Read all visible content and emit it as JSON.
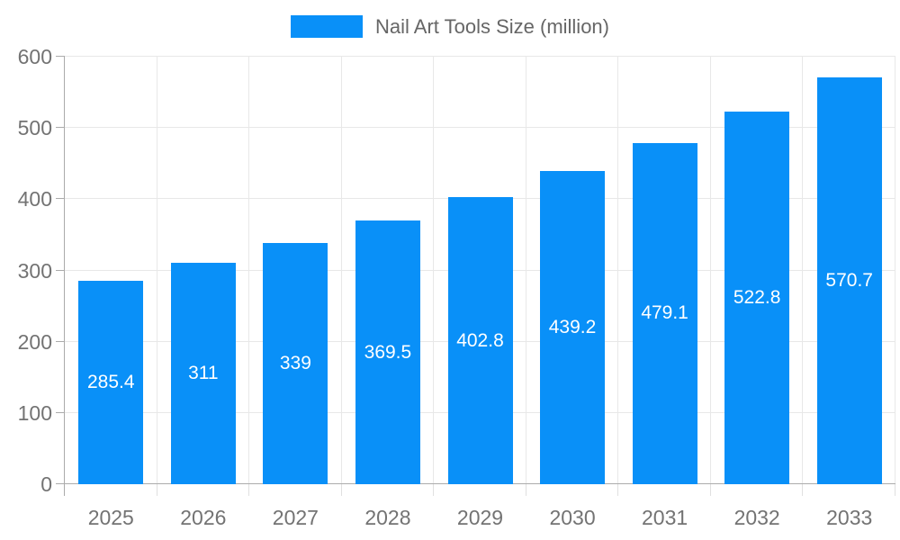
{
  "chart_data": {
    "type": "bar",
    "title": "Nail Art Tools Size (million)",
    "categories": [
      "2025",
      "2026",
      "2027",
      "2028",
      "2029",
      "2030",
      "2031",
      "2032",
      "2033"
    ],
    "values": [
      285.4,
      311,
      339,
      369.5,
      402.8,
      439.2,
      479.1,
      522.8,
      570.7
    ],
    "value_labels": [
      "285.4",
      "311",
      "339",
      "369.5",
      "402.8",
      "439.2",
      "479.1",
      "522.8",
      "570.7"
    ],
    "xlabel": "",
    "ylabel": "",
    "ylim": [
      0,
      600
    ],
    "yticks": [
      0,
      100,
      200,
      300,
      400,
      500,
      600
    ],
    "grid": true,
    "legend_position": "top-center",
    "series_name": "Nail Art Tools Size (million)"
  },
  "colors": {
    "bar": "#0990f8",
    "grid": "#e8e8e8",
    "axis": "#ababab",
    "boundary_tick": "#e0e0e0",
    "tick_label": "#737373",
    "legend_text": "#666666",
    "bar_label": "#ffffff",
    "background": "#ffffff"
  }
}
